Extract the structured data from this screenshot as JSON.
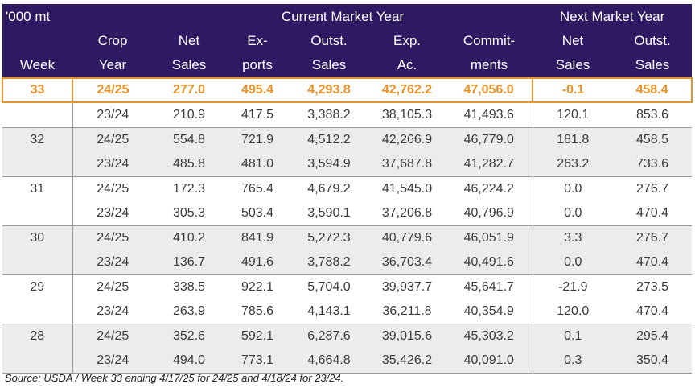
{
  "header": {
    "unit": "'000 mt",
    "current_group": "Current Market Year",
    "next_group": "Next Market Year",
    "row2": [
      "Crop",
      "Net",
      "Ex-",
      "Outst.",
      "Exp.",
      "Commit-",
      "Net",
      "Outst."
    ],
    "row3": [
      "Week",
      "Year",
      "Sales",
      "ports",
      "Sales",
      "Ac.",
      "ments",
      "Sales",
      "Sales"
    ]
  },
  "rows": [
    [
      "33",
      "24/25",
      "277.0",
      "495.4",
      "4,293.8",
      "42,762.2",
      "47,056.0",
      "-0.1",
      "458.4"
    ],
    [
      "",
      "23/24",
      "210.9",
      "417.5",
      "3,388.2",
      "38,105.3",
      "41,493.6",
      "120.1",
      "853.6"
    ],
    [
      "32",
      "24/25",
      "554.8",
      "721.9",
      "4,512.2",
      "42,266.9",
      "46,779.0",
      "181.8",
      "458.5"
    ],
    [
      "",
      "23/24",
      "485.8",
      "481.0",
      "3,594.9",
      "37,687.8",
      "41,282.7",
      "263.2",
      "733.6"
    ],
    [
      "31",
      "24/25",
      "172.3",
      "765.4",
      "4,679.2",
      "41,545.0",
      "46,224.2",
      "0.0",
      "276.7"
    ],
    [
      "",
      "23/24",
      "305.3",
      "503.4",
      "3,590.1",
      "37,206.8",
      "40,796.9",
      "0.0",
      "470.4"
    ],
    [
      "30",
      "24/25",
      "410.2",
      "841.9",
      "5,272.3",
      "40,779.6",
      "46,051.9",
      "3.3",
      "276.7"
    ],
    [
      "",
      "23/24",
      "136.7",
      "491.6",
      "3,788.2",
      "36,703.4",
      "40,491.6",
      "0.0",
      "470.4"
    ],
    [
      "29",
      "24/25",
      "338.5",
      "922.1",
      "5,704.0",
      "39,937.7",
      "45,641.7",
      "-21.9",
      "273.5"
    ],
    [
      "",
      "23/24",
      "263.9",
      "785.6",
      "4,143.1",
      "36,211.8",
      "40,354.9",
      "120.0",
      "470.4"
    ],
    [
      "28",
      "24/25",
      "352.6",
      "592.1",
      "6,287.6",
      "39,015.6",
      "45,303.2",
      "0.1",
      "295.4"
    ],
    [
      "",
      "23/24",
      "494.0",
      "773.1",
      "4,664.8",
      "35,426.2",
      "40,091.0",
      "0.3",
      "350.4"
    ]
  ],
  "source": "Source: USDA / Week 33 ending 4/17/25 for 24/25 and 4/18/24 for 23/24.",
  "colors": {
    "header_bg": "#2e1a63",
    "highlight": "#e8922a",
    "shade": "#ececec"
  }
}
